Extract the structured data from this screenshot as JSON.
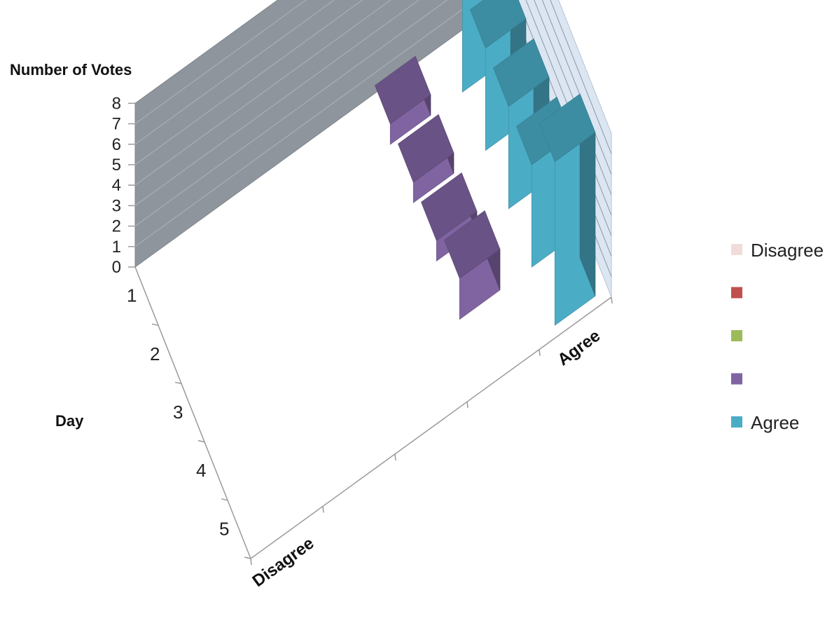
{
  "chart_data": {
    "type": "bar3d",
    "title": "",
    "zlabel": "Number of Votes",
    "ylabel": "Day",
    "xlabel": "",
    "zlim": [
      0,
      8
    ],
    "z_ticks": [
      "0",
      "1",
      "2",
      "3",
      "4",
      "5",
      "6",
      "7",
      "8"
    ],
    "days": [
      "1",
      "2",
      "3",
      "4",
      "5"
    ],
    "categories": [
      "Disagree",
      "",
      "",
      "",
      "Agree"
    ],
    "x_tick_labels": [
      "Disagree",
      "Agree"
    ],
    "series": [
      {
        "name": "Disagree",
        "color": "#f2dcdb",
        "values": [
          0,
          0,
          0,
          0,
          0
        ]
      },
      {
        "name": "",
        "color": "#c0504d",
        "values": [
          0,
          0,
          0,
          0,
          0
        ]
      },
      {
        "name": "",
        "color": "#9bbb59",
        "values": [
          0,
          0,
          0,
          0,
          0
        ]
      },
      {
        "name": "",
        "color": "#8064a2",
        "values": [
          1,
          1,
          1,
          2,
          0
        ]
      },
      {
        "name": "Agree",
        "color": "#4bacc6",
        "values": [
          7,
          5,
          5,
          5,
          8
        ]
      }
    ],
    "gridlines": true,
    "legend_position": "right"
  }
}
